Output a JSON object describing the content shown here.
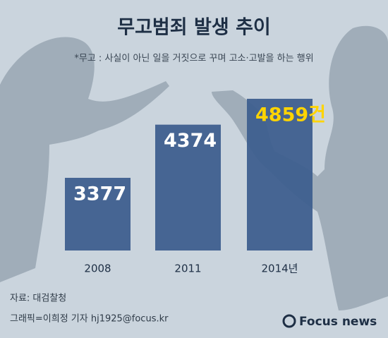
{
  "chart_data": {
    "type": "bar",
    "title": "무고범죄 발생 추이",
    "subtitle": "*무고 : 사실이 아닌 일을 거짓으로 꾸며 고소·고발을 하는 행위",
    "categories": [
      "2008",
      "2011",
      "2014년"
    ],
    "values": [
      3377,
      4374,
      4859
    ],
    "value_labels": [
      "3377",
      "4374",
      "4859건"
    ],
    "color": "#3e5f8e",
    "source": "자료: 대검찰청",
    "credit": "그래픽=이희정 기자 hj1925@focus.kr",
    "logo": "Focus news"
  }
}
